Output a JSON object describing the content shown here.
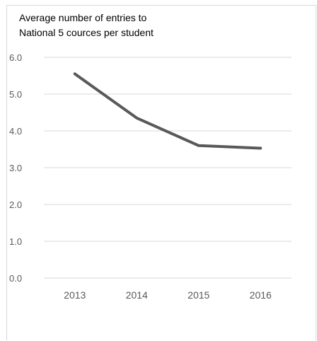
{
  "chart_data": {
    "type": "line",
    "title_lines": [
      "Average number of entries to",
      "National 5 cources per student"
    ],
    "categories": [
      "2013",
      "2014",
      "2015",
      "2016"
    ],
    "series": [
      {
        "values": [
          5.55,
          4.35,
          3.6,
          3.53
        ],
        "color": "#595959"
      }
    ],
    "ylim": [
      0,
      6
    ],
    "yticks": [
      "0.0",
      "1.0",
      "2.0",
      "3.0",
      "4.0",
      "5.0",
      "6.0"
    ],
    "grid": true,
    "legend": "none",
    "colors": {
      "gridline": "#d9d9d9",
      "axis_text": "#595959"
    }
  }
}
